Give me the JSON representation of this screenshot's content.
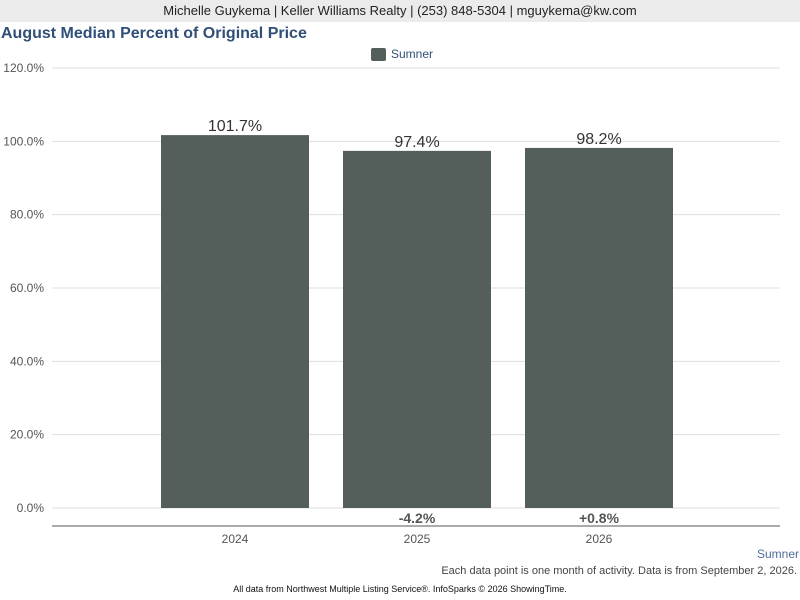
{
  "header": {
    "agent_info": "Michelle Guykema | Keller Williams Realty | (253) 848-5304 | mguykema@kw.com"
  },
  "chart_data": {
    "type": "bar",
    "title": "August Median Percent of Original Price",
    "categories": [
      "2024",
      "2025",
      "2026"
    ],
    "series": [
      {
        "name": "Sumner",
        "values": [
          101.7,
          97.4,
          98.2
        ],
        "value_labels": [
          "101.7%",
          "97.4%",
          "98.2%"
        ],
        "change_labels": [
          "",
          "-4.2%",
          "+0.8%"
        ]
      }
    ],
    "xlabel": "",
    "ylabel": "",
    "ylim": [
      0,
      120
    ],
    "yticks": [
      0,
      20,
      40,
      60,
      80,
      100,
      120
    ],
    "ytick_labels": [
      "0.0%",
      "20.0%",
      "40.0%",
      "60.0%",
      "80.0%",
      "100.0%",
      "120.0%"
    ],
    "grid": true,
    "legend_position": "top-center",
    "bar_color": "#545e5b"
  },
  "geo_label": "Sumner",
  "footnote": "Each data point is one month of activity. Data is from September 2, 2026.",
  "footer": "All data from Northwest Multiple Listing Service®. InfoSparks © 2026 ShowingTime."
}
